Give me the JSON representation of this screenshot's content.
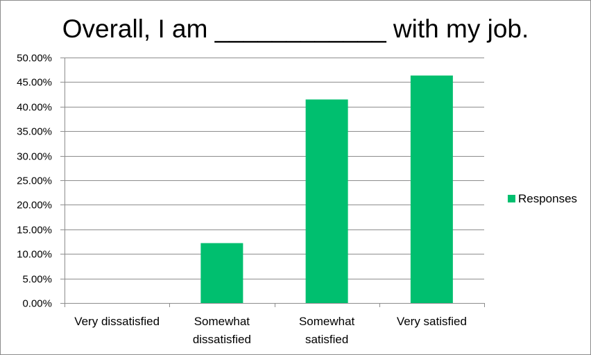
{
  "chart_data": {
    "type": "bar",
    "title": "Overall, I am ____________ with my job.",
    "xlabel": "",
    "ylabel": "",
    "categories": [
      [
        "Very dissatisfied"
      ],
      [
        "Somewhat",
        "dissatisfied"
      ],
      [
        "Somewhat",
        "satisfied"
      ],
      [
        "Very satisfied"
      ]
    ],
    "series": [
      {
        "name": "Responses",
        "color": "#00bf6f",
        "values": [
          0.0,
          12.2,
          41.46,
          46.34
        ]
      }
    ],
    "ylim": [
      0,
      50
    ],
    "yticks": [
      "0.00%",
      "5.00%",
      "10.00%",
      "15.00%",
      "20.00%",
      "25.00%",
      "30.00%",
      "35.00%",
      "40.00%",
      "45.00%",
      "50.00%"
    ],
    "grid": true,
    "legend_position": "right"
  }
}
